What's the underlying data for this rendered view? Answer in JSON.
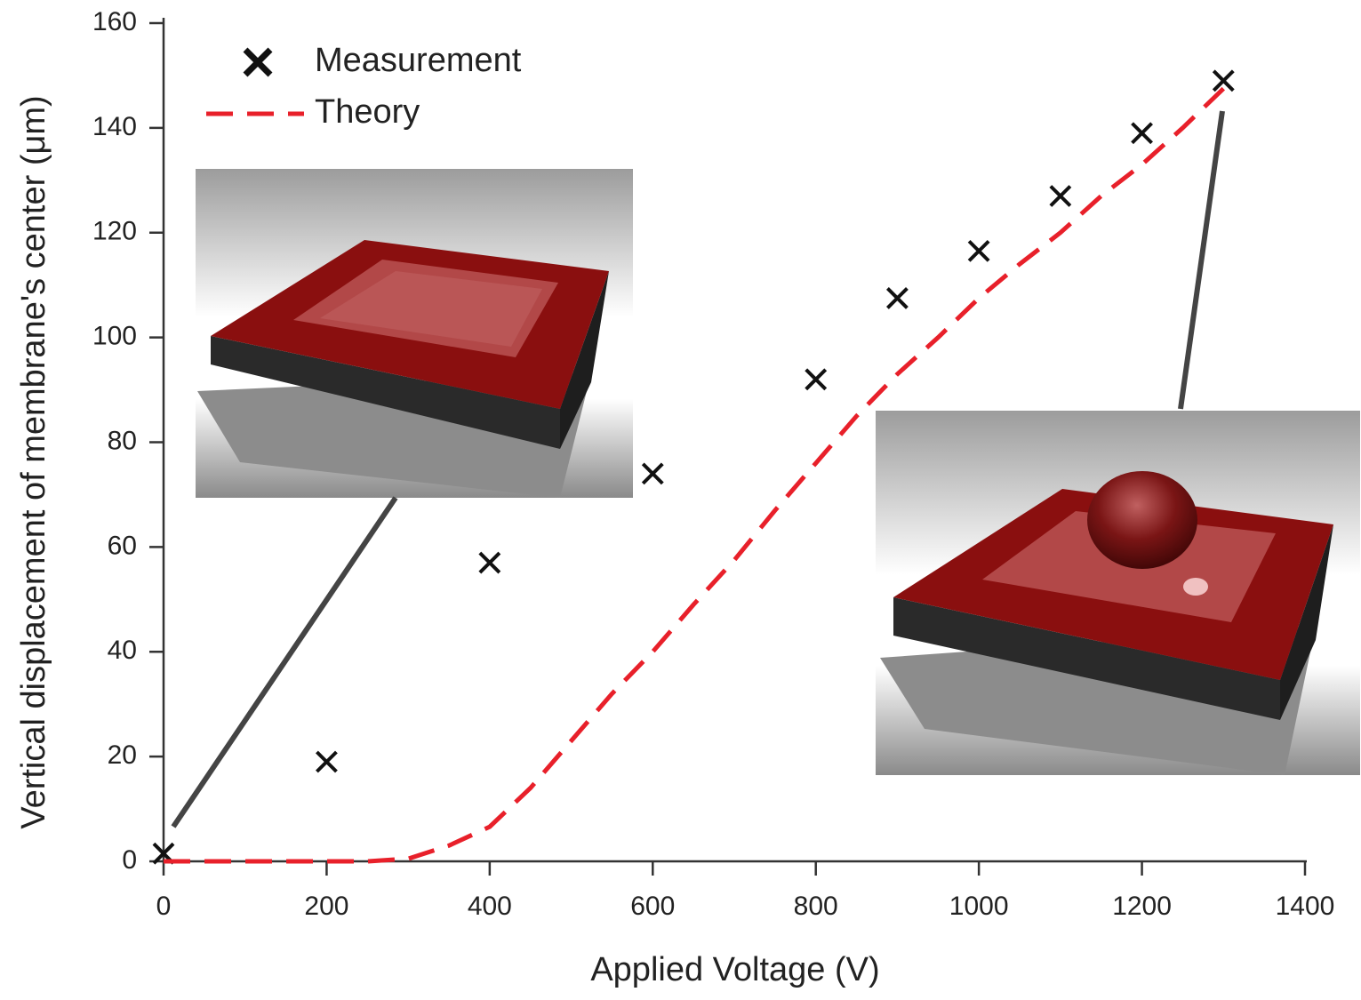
{
  "chart_data": {
    "type": "scatter",
    "x_label": "Applied Voltage (V)",
    "y_label": "Vertical displacement of membrane's center (μm)",
    "xlim": [
      0,
      1400
    ],
    "ylim": [
      0,
      160
    ],
    "xticks": [
      0,
      200,
      400,
      600,
      800,
      1000,
      1200,
      1400
    ],
    "yticks": [
      0,
      20,
      40,
      60,
      80,
      100,
      120,
      140,
      160
    ],
    "legend": "upper-left",
    "series": [
      {
        "name": "Measurement",
        "mode": "markers",
        "color": "#111111",
        "x": [
          0,
          200,
          400,
          600,
          800,
          900,
          1000,
          1100,
          1200,
          1300
        ],
        "values": [
          1.5,
          19,
          57,
          74,
          92,
          107.5,
          116.5,
          127,
          139,
          149
        ]
      },
      {
        "name": "Theory",
        "mode": "dashed-line",
        "color": "#e8202a",
        "x": [
          0,
          100,
          200,
          250,
          300,
          350,
          400,
          450,
          500,
          550,
          600,
          650,
          700,
          750,
          800,
          850,
          900,
          950,
          1000,
          1050,
          1100,
          1150,
          1200,
          1250,
          1300
        ],
        "values": [
          0,
          0,
          0,
          0,
          0.5,
          3,
          6.6,
          14,
          23,
          32,
          40,
          49,
          57.5,
          67,
          76,
          85,
          93,
          100,
          107.5,
          114,
          120,
          127,
          133,
          140,
          147.5
        ]
      }
    ]
  }
}
